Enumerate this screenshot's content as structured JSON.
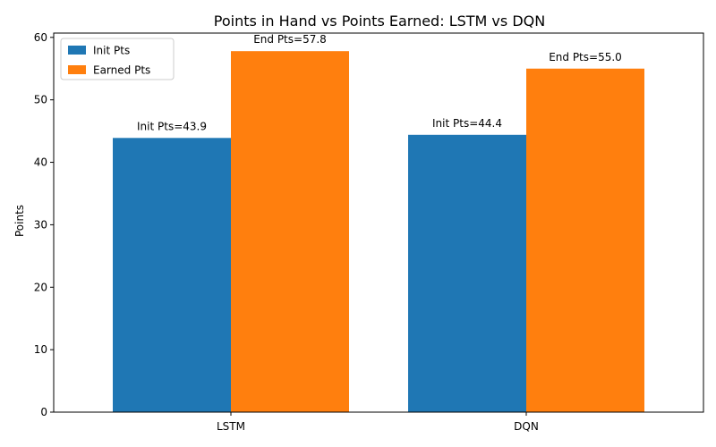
{
  "chart_data": {
    "type": "bar",
    "title": "Points in Hand vs Points Earned: LSTM vs DQN",
    "xlabel": "",
    "ylabel": "Points",
    "categories": [
      "LSTM",
      "DQN"
    ],
    "series": [
      {
        "name": "Init Pts",
        "values": [
          43.9,
          44.4
        ],
        "color": "#1f77b4",
        "data_labels": [
          "Init Pts=43.9",
          "Init Pts=44.4"
        ]
      },
      {
        "name": "Earned Pts",
        "values": [
          57.8,
          55.0
        ],
        "color": "#ff7f0e",
        "data_labels": [
          "End Pts=57.8",
          "End Pts=55.0"
        ]
      }
    ],
    "ylim": [
      0,
      60.69
    ],
    "yticks": [
      0,
      10,
      20,
      30,
      40,
      50,
      60
    ],
    "ytick_labels": [
      "0",
      "10",
      "20",
      "30",
      "40",
      "50",
      "60"
    ],
    "grid": false,
    "legend_position": "upper-left"
  }
}
